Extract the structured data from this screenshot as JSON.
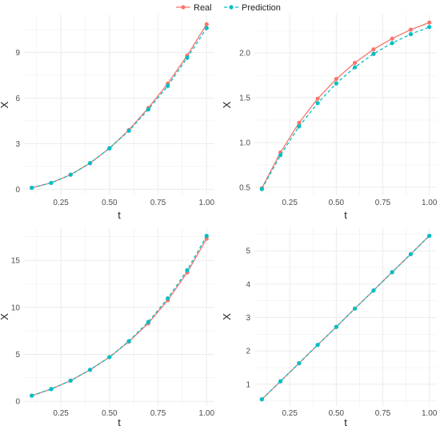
{
  "legend": {
    "placement": "top-center",
    "items": [
      {
        "label": "Real",
        "color": "#F8766D",
        "dash": "solid"
      },
      {
        "label": "Prediction",
        "color": "#00BFC4",
        "dash": "dashed"
      }
    ]
  },
  "chart_data": [
    {
      "type": "line",
      "xlabel": "t",
      "ylabel": "X",
      "xlim": [
        0.06,
        1.04
      ],
      "ylim": [
        -0.4,
        11.5
      ],
      "xticks": [
        0.25,
        0.5,
        0.75,
        1.0
      ],
      "xtick_labels": [
        "0.25",
        "0.50",
        "0.75",
        "1.00"
      ],
      "yticks": [
        0,
        3,
        6,
        9
      ],
      "ytick_labels": [
        "0",
        "3",
        "6",
        "9"
      ],
      "grid": true,
      "x": [
        0.1,
        0.2,
        0.3,
        0.4,
        0.5,
        0.6,
        0.7,
        0.8,
        0.9,
        1.0
      ],
      "series": [
        {
          "name": "Real",
          "values": [
            0.1,
            0.42,
            0.96,
            1.72,
            2.7,
            3.9,
            5.35,
            6.95,
            8.8,
            10.85
          ]
        },
        {
          "name": "Prediction",
          "values": [
            0.1,
            0.42,
            0.96,
            1.72,
            2.7,
            3.85,
            5.25,
            6.8,
            8.65,
            10.6
          ]
        }
      ]
    },
    {
      "type": "line",
      "xlabel": "t",
      "ylabel": "X",
      "xlim": [
        0.06,
        1.04
      ],
      "ylim": [
        0.41,
        2.43
      ],
      "xticks": [
        0.25,
        0.5,
        0.75,
        1.0
      ],
      "xtick_labels": [
        "0.25",
        "0.50",
        "0.75",
        "1.00"
      ],
      "yticks": [
        0.5,
        1.0,
        1.5,
        2.0
      ],
      "ytick_labels": [
        "0.5",
        "1.0",
        "1.5",
        "2.0"
      ],
      "grid": true,
      "x": [
        0.1,
        0.2,
        0.3,
        0.4,
        0.5,
        0.6,
        0.7,
        0.8,
        0.9,
        1.0
      ],
      "series": [
        {
          "name": "Real",
          "values": [
            0.49,
            0.89,
            1.22,
            1.49,
            1.71,
            1.89,
            2.04,
            2.16,
            2.26,
            2.34
          ]
        },
        {
          "name": "Prediction",
          "values": [
            0.48,
            0.86,
            1.18,
            1.44,
            1.66,
            1.84,
            1.99,
            2.11,
            2.21,
            2.29
          ]
        }
      ]
    },
    {
      "type": "line",
      "xlabel": "t",
      "ylabel": "X",
      "xlim": [
        0.06,
        1.04
      ],
      "ylim": [
        -0.5,
        18.5
      ],
      "xticks": [
        0.25,
        0.5,
        0.75,
        1.0
      ],
      "xtick_labels": [
        "0.25",
        "0.50",
        "0.75",
        "1.00"
      ],
      "yticks": [
        0,
        5,
        10,
        15
      ],
      "ytick_labels": [
        "0",
        "5",
        "10",
        "15"
      ],
      "grid": true,
      "x": [
        0.1,
        0.2,
        0.3,
        0.4,
        0.5,
        0.6,
        0.7,
        0.8,
        0.9,
        1.0
      ],
      "series": [
        {
          "name": "Real",
          "values": [
            0.6,
            1.3,
            2.2,
            3.35,
            4.7,
            6.35,
            8.3,
            10.75,
            13.7,
            17.3
          ]
        },
        {
          "name": "Prediction",
          "values": [
            0.6,
            1.3,
            2.2,
            3.35,
            4.7,
            6.4,
            8.45,
            10.95,
            13.95,
            17.6
          ]
        }
      ]
    },
    {
      "type": "line",
      "xlabel": "t",
      "ylabel": "X",
      "xlim": [
        0.06,
        1.04
      ],
      "ylim": [
        0.35,
        5.7
      ],
      "xticks": [
        0.25,
        0.5,
        0.75,
        1.0
      ],
      "xtick_labels": [
        "0.25",
        "0.50",
        "0.75",
        "1.00"
      ],
      "yticks": [
        1,
        2,
        3,
        4,
        5
      ],
      "ytick_labels": [
        "1",
        "2",
        "3",
        "4",
        "5"
      ],
      "grid": true,
      "x": [
        0.1,
        0.2,
        0.3,
        0.4,
        0.5,
        0.6,
        0.7,
        0.8,
        0.9,
        1.0
      ],
      "series": [
        {
          "name": "Real",
          "values": [
            0.55,
            1.09,
            1.63,
            2.18,
            2.72,
            3.27,
            3.81,
            4.36,
            4.9,
            5.45
          ]
        },
        {
          "name": "Prediction",
          "values": [
            0.55,
            1.09,
            1.63,
            2.18,
            2.72,
            3.27,
            3.81,
            4.36,
            4.9,
            5.45
          ]
        }
      ]
    }
  ]
}
